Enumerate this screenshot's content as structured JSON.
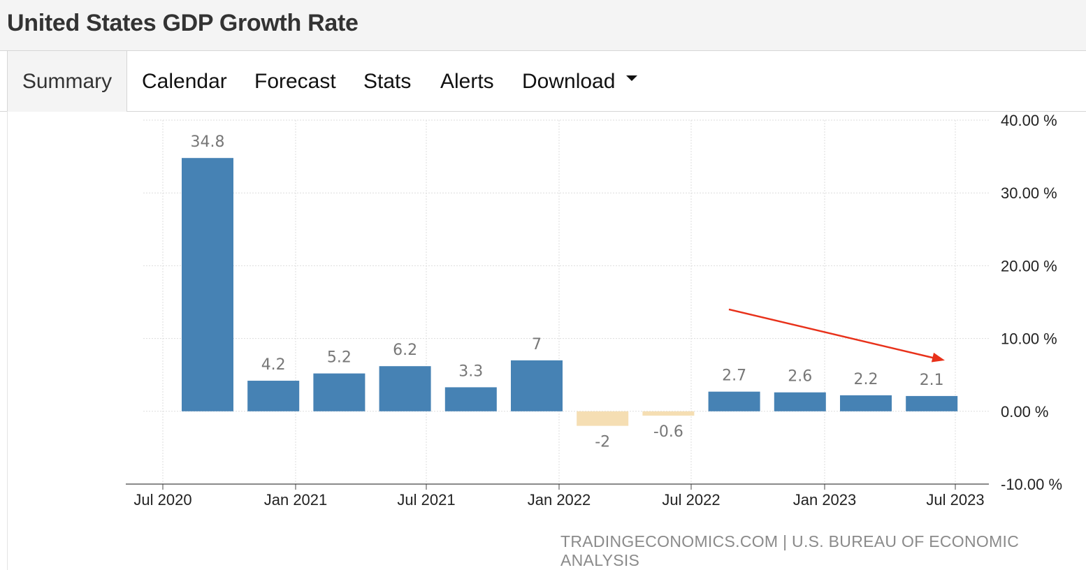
{
  "page": {
    "title": "United States GDP Growth Rate"
  },
  "tabs": [
    {
      "label": "Summary",
      "active": true
    },
    {
      "label": "Calendar"
    },
    {
      "label": "Forecast"
    },
    {
      "label": "Stats"
    },
    {
      "label": "Alerts"
    },
    {
      "label": "Download"
    }
  ],
  "source": {
    "text": "TRADINGECONOMICS.COM | U.S. BUREAU OF ECONOMIC ANALYSIS"
  },
  "colors": {
    "positive_bar": "#4682b4",
    "negative_bar": "#f5deb3",
    "annotation_arrow": "#e8311a",
    "gridline": "#dddddd",
    "label_text": "#777777"
  },
  "chart_data": {
    "type": "bar",
    "title": "United States GDP Growth Rate",
    "xlabel": "",
    "ylabel": "",
    "categories": [
      "Q3 2020",
      "Q4 2020",
      "Q1 2021",
      "Q2 2021",
      "Q3 2021",
      "Q4 2021",
      "Q1 2022",
      "Q2 2022",
      "Q3 2022",
      "Q4 2022",
      "Q1 2023",
      "Q2 2023"
    ],
    "values": [
      34.8,
      4.2,
      5.2,
      6.2,
      3.3,
      7,
      -2,
      -0.6,
      2.7,
      2.6,
      2.2,
      2.1
    ],
    "data_labels": [
      "34.8",
      "4.2",
      "5.2",
      "6.2",
      "3.3",
      "7",
      "-2",
      "-0.6",
      "2.7",
      "2.6",
      "2.2",
      "2.1"
    ],
    "x_ticks": [
      "Jul 2020",
      "Jan 2021",
      "Jul 2021",
      "Jan 2022",
      "Jul 2022",
      "Jan 2023",
      "Jul 2023"
    ],
    "y_ticks": [
      40,
      30,
      20,
      10,
      0,
      -10
    ],
    "y_tick_labels": [
      "40.00 %",
      "30.00 %",
      "20.00 %",
      "10.00 %",
      "0.00 %",
      "-10.00 %"
    ],
    "ylim": [
      -10,
      40
    ],
    "y_axis_position": "right",
    "grid": true,
    "annotation": {
      "type": "arrow",
      "meaning": "downward trend",
      "from_value": 14,
      "to_value": 7
    }
  }
}
